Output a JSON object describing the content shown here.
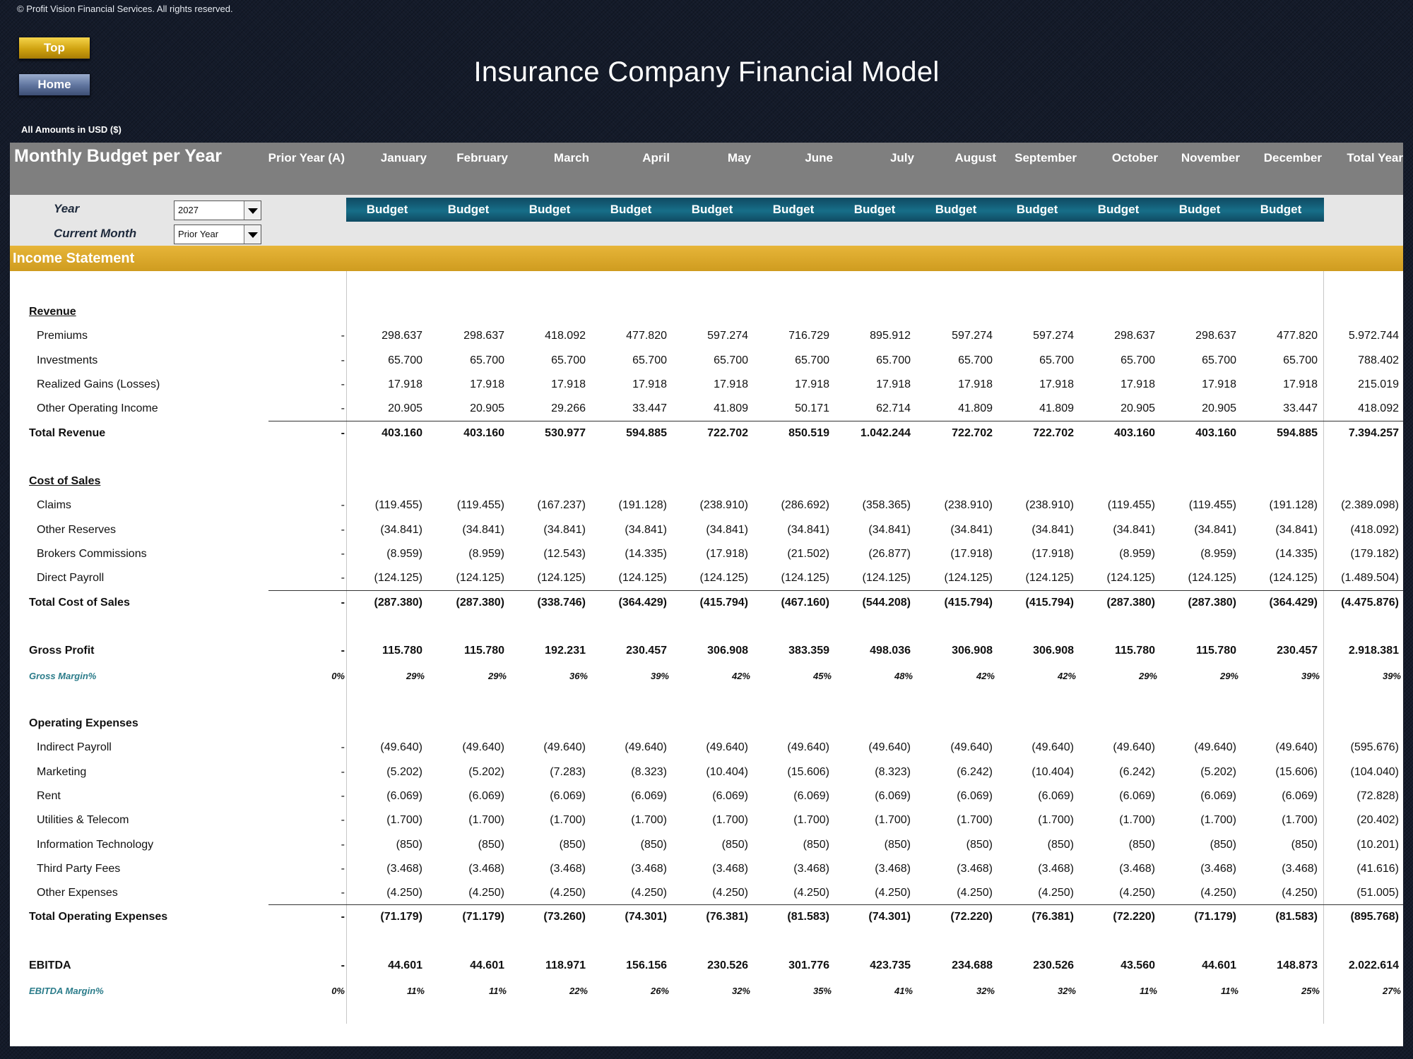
{
  "copyright": "© Profit Vision Financial Services. All rights reserved.",
  "nav": {
    "top_label": "Top",
    "home_label": "Home"
  },
  "title": "Insurance Company Financial Model",
  "amounts_note": "All Amounts in  USD ($)",
  "header": {
    "title": "Monthly Budget per Year",
    "columns": [
      "Prior Year (A)",
      "January",
      "February",
      "March",
      "April",
      "May",
      "June",
      "July",
      "August",
      "September",
      "October",
      "November",
      "December",
      "Total Year"
    ]
  },
  "controls": {
    "year_label": "Year",
    "year_value": "2027",
    "month_label": "Current Month",
    "month_value": "Prior Year"
  },
  "budget_labels": [
    "Budget",
    "Budget",
    "Budget",
    "Budget",
    "Budget",
    "Budget",
    "Budget",
    "Budget",
    "Budget",
    "Budget",
    "Budget",
    "Budget"
  ],
  "section_title": "Income Statement",
  "rows": [
    {
      "label": "Revenue",
      "type": "header-ul"
    },
    {
      "label": "Premiums",
      "type": "item",
      "values": [
        "-",
        "298.637",
        "298.637",
        "418.092",
        "477.820",
        "597.274",
        "716.729",
        "895.912",
        "597.274",
        "597.274",
        "298.637",
        "298.637",
        "477.820",
        "5.972.744"
      ]
    },
    {
      "label": "Investments",
      "type": "item",
      "values": [
        "-",
        "65.700",
        "65.700",
        "65.700",
        "65.700",
        "65.700",
        "65.700",
        "65.700",
        "65.700",
        "65.700",
        "65.700",
        "65.700",
        "65.700",
        "788.402"
      ]
    },
    {
      "label": "Realized Gains (Losses)",
      "type": "item",
      "values": [
        "-",
        "17.918",
        "17.918",
        "17.918",
        "17.918",
        "17.918",
        "17.918",
        "17.918",
        "17.918",
        "17.918",
        "17.918",
        "17.918",
        "17.918",
        "215.019"
      ]
    },
    {
      "label": "Other Operating Income",
      "type": "item",
      "values": [
        "-",
        "20.905",
        "20.905",
        "29.266",
        "33.447",
        "41.809",
        "50.171",
        "62.714",
        "41.809",
        "41.809",
        "20.905",
        "20.905",
        "33.447",
        "418.092"
      ]
    },
    {
      "label": "Total Revenue",
      "type": "total",
      "values": [
        "-",
        "403.160",
        "403.160",
        "530.977",
        "594.885",
        "722.702",
        "850.519",
        "1.042.244",
        "722.702",
        "722.702",
        "403.160",
        "403.160",
        "594.885",
        "7.394.257"
      ]
    },
    {
      "label": "",
      "type": "spacer"
    },
    {
      "label": "Cost of Sales",
      "type": "header-ul"
    },
    {
      "label": "Claims",
      "type": "item",
      "values": [
        "-",
        "(119.455)",
        "(119.455)",
        "(167.237)",
        "(191.128)",
        "(238.910)",
        "(286.692)",
        "(358.365)",
        "(238.910)",
        "(238.910)",
        "(119.455)",
        "(119.455)",
        "(191.128)",
        "(2.389.098)"
      ]
    },
    {
      "label": "Other Reserves",
      "type": "item",
      "values": [
        "-",
        "(34.841)",
        "(34.841)",
        "(34.841)",
        "(34.841)",
        "(34.841)",
        "(34.841)",
        "(34.841)",
        "(34.841)",
        "(34.841)",
        "(34.841)",
        "(34.841)",
        "(34.841)",
        "(418.092)"
      ]
    },
    {
      "label": "Brokers Commissions",
      "type": "item",
      "values": [
        "-",
        "(8.959)",
        "(8.959)",
        "(12.543)",
        "(14.335)",
        "(17.918)",
        "(21.502)",
        "(26.877)",
        "(17.918)",
        "(17.918)",
        "(8.959)",
        "(8.959)",
        "(14.335)",
        "(179.182)"
      ]
    },
    {
      "label": "Direct Payroll",
      "type": "item",
      "values": [
        "-",
        "(124.125)",
        "(124.125)",
        "(124.125)",
        "(124.125)",
        "(124.125)",
        "(124.125)",
        "(124.125)",
        "(124.125)",
        "(124.125)",
        "(124.125)",
        "(124.125)",
        "(124.125)",
        "(1.489.504)"
      ]
    },
    {
      "label": "Total Cost of Sales",
      "type": "total",
      "values": [
        "-",
        "(287.380)",
        "(287.380)",
        "(338.746)",
        "(364.429)",
        "(415.794)",
        "(467.160)",
        "(544.208)",
        "(415.794)",
        "(415.794)",
        "(287.380)",
        "(287.380)",
        "(364.429)",
        "(4.475.876)"
      ]
    },
    {
      "label": "",
      "type": "spacer"
    },
    {
      "label": "Gross Profit",
      "type": "subtotal",
      "values": [
        "-",
        "115.780",
        "115.780",
        "192.231",
        "230.457",
        "306.908",
        "383.359",
        "498.036",
        "306.908",
        "306.908",
        "115.780",
        "115.780",
        "230.457",
        "2.918.381"
      ]
    },
    {
      "label": "Gross Margin%",
      "type": "margin",
      "values": [
        "0%",
        "29%",
        "29%",
        "36%",
        "39%",
        "42%",
        "45%",
        "48%",
        "42%",
        "42%",
        "29%",
        "29%",
        "39%",
        "39%"
      ]
    },
    {
      "label": "",
      "type": "spacer"
    },
    {
      "label": "Operating Expenses",
      "type": "header"
    },
    {
      "label": "Indirect Payroll",
      "type": "item",
      "values": [
        "-",
        "(49.640)",
        "(49.640)",
        "(49.640)",
        "(49.640)",
        "(49.640)",
        "(49.640)",
        "(49.640)",
        "(49.640)",
        "(49.640)",
        "(49.640)",
        "(49.640)",
        "(49.640)",
        "(595.676)"
      ]
    },
    {
      "label": "Marketing",
      "type": "item",
      "values": [
        "-",
        "(5.202)",
        "(5.202)",
        "(7.283)",
        "(8.323)",
        "(10.404)",
        "(15.606)",
        "(8.323)",
        "(6.242)",
        "(10.404)",
        "(6.242)",
        "(5.202)",
        "(15.606)",
        "(104.040)"
      ]
    },
    {
      "label": "Rent",
      "type": "item",
      "values": [
        "-",
        "(6.069)",
        "(6.069)",
        "(6.069)",
        "(6.069)",
        "(6.069)",
        "(6.069)",
        "(6.069)",
        "(6.069)",
        "(6.069)",
        "(6.069)",
        "(6.069)",
        "(6.069)",
        "(72.828)"
      ]
    },
    {
      "label": "Utilities & Telecom",
      "type": "item",
      "values": [
        "-",
        "(1.700)",
        "(1.700)",
        "(1.700)",
        "(1.700)",
        "(1.700)",
        "(1.700)",
        "(1.700)",
        "(1.700)",
        "(1.700)",
        "(1.700)",
        "(1.700)",
        "(1.700)",
        "(20.402)"
      ]
    },
    {
      "label": "Information Technology",
      "type": "item",
      "values": [
        "-",
        "(850)",
        "(850)",
        "(850)",
        "(850)",
        "(850)",
        "(850)",
        "(850)",
        "(850)",
        "(850)",
        "(850)",
        "(850)",
        "(850)",
        "(10.201)"
      ]
    },
    {
      "label": "Third Party Fees",
      "type": "item",
      "values": [
        "-",
        "(3.468)",
        "(3.468)",
        "(3.468)",
        "(3.468)",
        "(3.468)",
        "(3.468)",
        "(3.468)",
        "(3.468)",
        "(3.468)",
        "(3.468)",
        "(3.468)",
        "(3.468)",
        "(41.616)"
      ]
    },
    {
      "label": "Other Expenses",
      "type": "item",
      "values": [
        "-",
        "(4.250)",
        "(4.250)",
        "(4.250)",
        "(4.250)",
        "(4.250)",
        "(4.250)",
        "(4.250)",
        "(4.250)",
        "(4.250)",
        "(4.250)",
        "(4.250)",
        "(4.250)",
        "(51.005)"
      ]
    },
    {
      "label": "Total Operating Expenses",
      "type": "total",
      "values": [
        "-",
        "(71.179)",
        "(71.179)",
        "(73.260)",
        "(74.301)",
        "(76.381)",
        "(81.583)",
        "(74.301)",
        "(72.220)",
        "(76.381)",
        "(72.220)",
        "(71.179)",
        "(81.583)",
        "(895.768)"
      ]
    },
    {
      "label": "",
      "type": "spacer"
    },
    {
      "label": "EBITDA",
      "type": "subtotal",
      "values": [
        "-",
        "44.601",
        "44.601",
        "118.971",
        "156.156",
        "230.526",
        "301.776",
        "423.735",
        "234.688",
        "230.526",
        "43.560",
        "44.601",
        "148.873",
        "2.022.614"
      ]
    },
    {
      "label": "EBITDA Margin%",
      "type": "margin",
      "values": [
        "0%",
        "11%",
        "11%",
        "22%",
        "26%",
        "32%",
        "35%",
        "41%",
        "32%",
        "32%",
        "11%",
        "11%",
        "25%",
        "27%"
      ]
    }
  ]
}
